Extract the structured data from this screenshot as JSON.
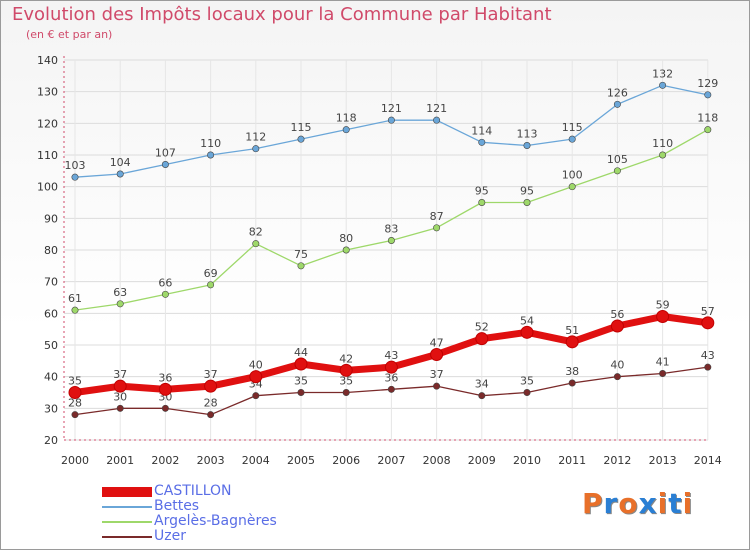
{
  "header": {
    "title": "Evolution des Impôts locaux pour la Commune par Habitant",
    "subtitle": "(en € et par an)"
  },
  "logo": {
    "text": "Proxiti",
    "colors": [
      "#e8702a",
      "#2a7fd4",
      "#e8702a",
      "#2a7fd4",
      "#e8702a",
      "#2a7fd4",
      "#e8702a"
    ]
  },
  "chart_data": {
    "type": "line",
    "x": [
      2000,
      2001,
      2002,
      2003,
      2004,
      2005,
      2006,
      2007,
      2008,
      2009,
      2010,
      2011,
      2012,
      2013,
      2014
    ],
    "ylim": [
      20,
      140
    ],
    "yticks": [
      20,
      30,
      40,
      50,
      60,
      70,
      80,
      90,
      100,
      110,
      120,
      130,
      140
    ],
    "grid": true,
    "legend_position": "bottom-left",
    "series": [
      {
        "name": "CASTILLON",
        "color": "#e01010",
        "values": [
          35,
          37,
          36,
          37,
          40,
          44,
          42,
          43,
          47,
          52,
          54,
          51,
          56,
          59,
          57
        ]
      },
      {
        "name": "Bettes",
        "color": "#6aa6d8",
        "values": [
          103,
          104,
          107,
          110,
          112,
          115,
          118,
          121,
          121,
          114,
          113,
          115,
          126,
          132,
          129
        ]
      },
      {
        "name": "Argelès-Bagnères",
        "color": "#9ed86a",
        "values": [
          61,
          63,
          66,
          69,
          82,
          75,
          80,
          83,
          87,
          95,
          95,
          100,
          105,
          110,
          118
        ]
      },
      {
        "name": "Uzer",
        "color": "#7a2a2a",
        "values": [
          28,
          30,
          30,
          28,
          34,
          35,
          35,
          36,
          37,
          34,
          35,
          38,
          40,
          41,
          43
        ]
      }
    ]
  }
}
